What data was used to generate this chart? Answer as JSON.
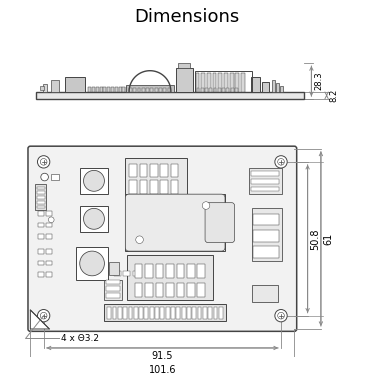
{
  "title": "Dimensions",
  "title_fontsize": 13,
  "background_color": "#ffffff",
  "dim_color": "#888888",
  "pcb_color": "#444444",
  "line_width": 0.7,
  "labels": {
    "width_inner": "91.5",
    "width_outer": "101.6",
    "height_inner": "50.8",
    "height_outer": "61",
    "height_side": "8.2",
    "height_top": "28.3",
    "holes": "4 x Θ3.2"
  }
}
